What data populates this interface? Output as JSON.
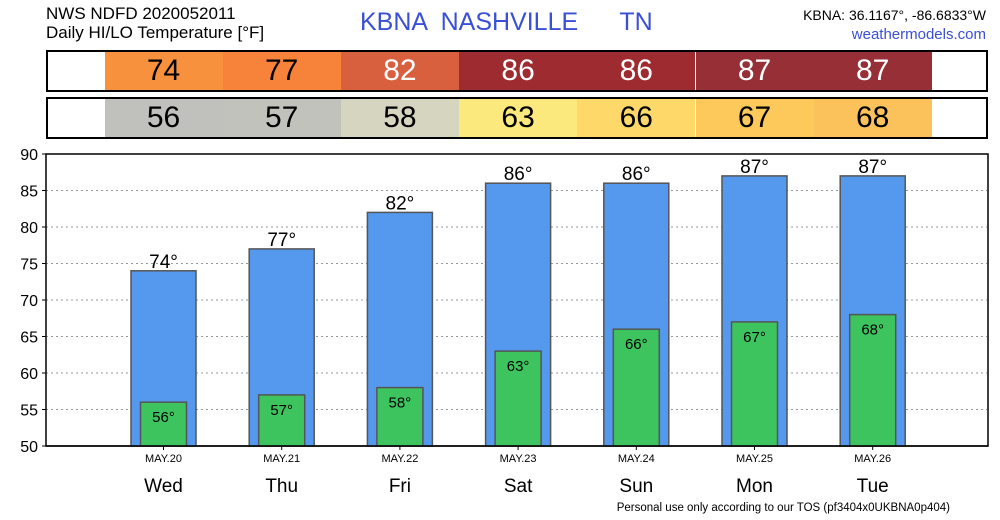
{
  "header": {
    "line1": "NWS NDFD 2020052011",
    "line2": "Daily HI/LO Temperature [°F]",
    "station": "KBNA  NASHVILLE      TN",
    "coords": "KBNA: 36.1167°, -86.6833°W",
    "site": "weathermodels.com"
  },
  "hi_band": {
    "values": [
      "74",
      "77",
      "82",
      "86",
      "86",
      "87",
      "87"
    ],
    "colors": [
      "#f7913e",
      "#f7823a",
      "#d9603f",
      "#9e2b30",
      "#9e2b30",
      "#963036",
      "#963036"
    ],
    "text_colors": [
      "#000000",
      "#000000",
      "#ffffff",
      "#ffffff",
      "#ffffff",
      "#ffffff",
      "#ffffff"
    ]
  },
  "lo_band": {
    "values": [
      "56",
      "57",
      "58",
      "63",
      "66",
      "67",
      "68"
    ],
    "colors": [
      "#c0c0bc",
      "#c2c2bc",
      "#d6d6c0",
      "#fbe97e",
      "#fed868",
      "#fcc95a",
      "#fbc15a"
    ],
    "text_colors": [
      "#000000",
      "#000000",
      "#000000",
      "#000000",
      "#000000",
      "#000000",
      "#000000"
    ]
  },
  "chart_data": {
    "type": "bar",
    "categories": [
      "Wed",
      "Thu",
      "Fri",
      "Sat",
      "Sun",
      "Mon",
      "Tue"
    ],
    "dates": [
      "MAY.20",
      "MAY.21",
      "MAY.22",
      "MAY.23",
      "MAY.24",
      "MAY.25",
      "MAY.26"
    ],
    "series": [
      {
        "values": [
          74,
          77,
          82,
          86,
          86,
          87,
          87
        ],
        "color": "#5599ee"
      },
      {
        "values": [
          56,
          57,
          58,
          63,
          66,
          67,
          68
        ],
        "color": "#3ec45e"
      }
    ],
    "bar_labels_hi": [
      "74°",
      "77°",
      "82°",
      "86°",
      "86°",
      "87°",
      "87°"
    ],
    "bar_labels_lo": [
      "56°",
      "57°",
      "58°",
      "63°",
      "66°",
      "67°",
      "68°"
    ],
    "ylim": [
      50,
      90
    ],
    "yticks": [
      50,
      55,
      60,
      65,
      70,
      75,
      80,
      85,
      90
    ],
    "grid": true,
    "legend": "none"
  },
  "footer": "Personal use only according to our TOS (pf3404x0UKBNA0p404)"
}
